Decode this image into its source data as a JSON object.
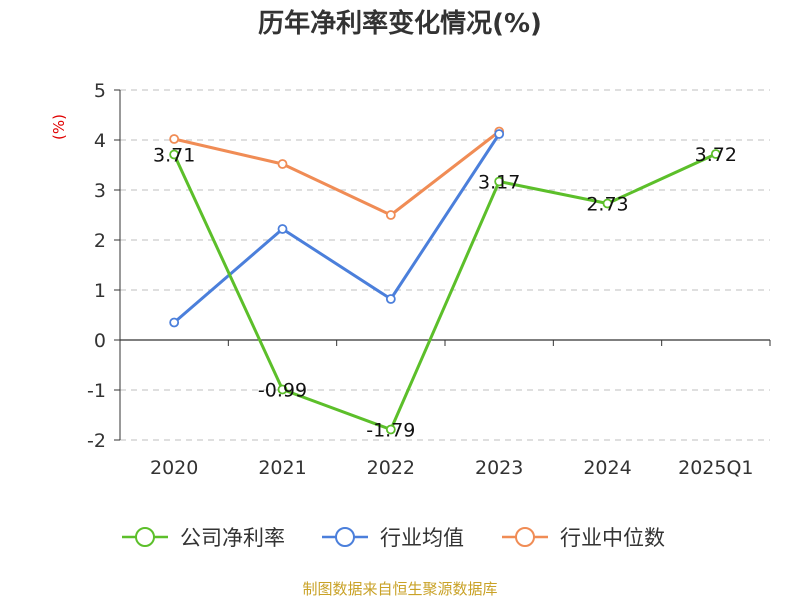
{
  "chart_data": {
    "type": "line",
    "title": "历年净利率变化情况(%)",
    "ylabel": "(%)",
    "ylim": [
      -2,
      5
    ],
    "yticks": [
      5,
      4,
      3,
      2,
      1,
      0,
      -1,
      -2
    ],
    "categories": [
      "2020",
      "2021",
      "2022",
      "2023",
      "2024",
      "2025Q1"
    ],
    "grid": true,
    "legend_position": "bottom",
    "series": [
      {
        "name": "公司净利率",
        "color": "#5cbf2a",
        "values": [
          3.71,
          -0.99,
          -1.79,
          3.17,
          2.73,
          3.72
        ],
        "labels": [
          "3.71",
          "-0.99",
          "-1.79",
          "3.17",
          "2.73",
          "3.72"
        ]
      },
      {
        "name": "行业均值",
        "color": "#4b7fdb",
        "values": [
          0.35,
          2.22,
          0.82,
          4.12,
          null,
          null
        ]
      },
      {
        "name": "行业中位数",
        "color": "#f08c55",
        "values": [
          4.02,
          3.52,
          2.5,
          4.17,
          null,
          null
        ]
      }
    ]
  },
  "footer": {
    "source": "制图数据来自恒生聚源数据库"
  }
}
